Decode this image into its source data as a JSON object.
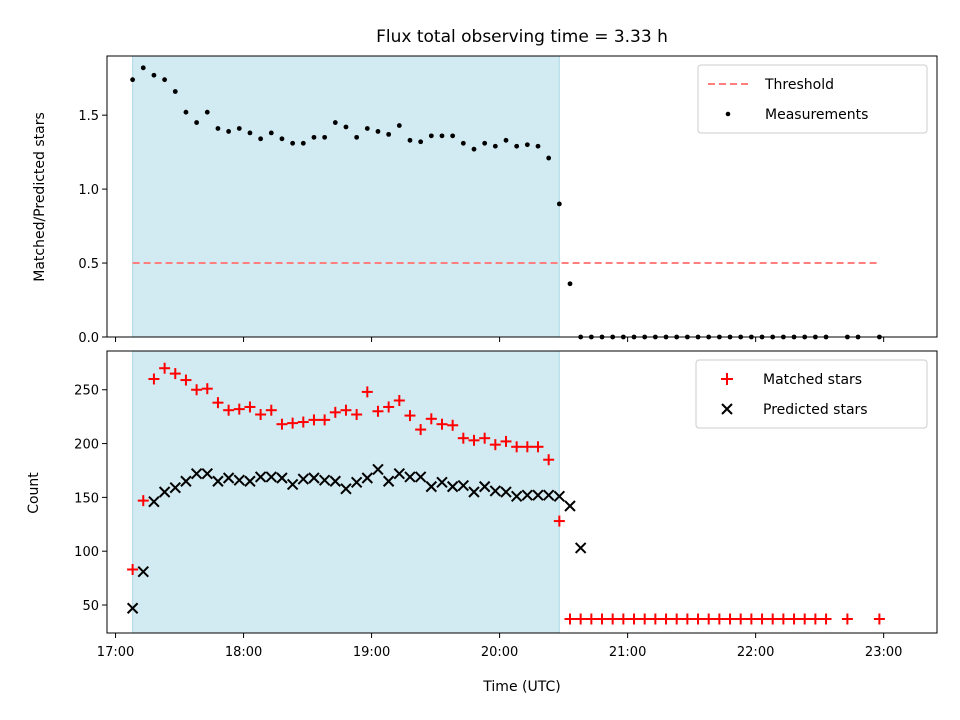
{
  "chart_data": [
    {
      "type": "scatter",
      "title": "Flux total observing time = 3.33 h",
      "xlabel": "",
      "ylabel": "Matched/Predicted stars",
      "ylim": [
        0,
        1.9
      ],
      "yticks": [
        0.0,
        0.5,
        1.0,
        1.5
      ],
      "ytick_labels": [
        "0.0",
        "0.5",
        "1.0",
        "1.5"
      ],
      "observing_window": {
        "start": "17:08",
        "end": "20:28",
        "color": "#add8e6"
      },
      "threshold": {
        "name": "Threshold",
        "value": 0.5,
        "x_start": "17:08",
        "x_end": "22:58",
        "color": "#ff7f7f"
      },
      "legend": {
        "position": "top-right",
        "entries": [
          "Threshold",
          "Measurements"
        ]
      },
      "series": [
        {
          "name": "Measurements",
          "color": "#000000",
          "marker": "dot",
          "points": [
            [
              "17:08",
              1.74
            ],
            [
              "17:13",
              1.82
            ],
            [
              "17:18",
              1.77
            ],
            [
              "17:23",
              1.74
            ],
            [
              "17:28",
              1.66
            ],
            [
              "17:33",
              1.52
            ],
            [
              "17:38",
              1.45
            ],
            [
              "17:43",
              1.52
            ],
            [
              "17:48",
              1.41
            ],
            [
              "17:53",
              1.39
            ],
            [
              "17:58",
              1.41
            ],
            [
              "18:03",
              1.38
            ],
            [
              "18:08",
              1.34
            ],
            [
              "18:13",
              1.38
            ],
            [
              "18:18",
              1.34
            ],
            [
              "18:23",
              1.31
            ],
            [
              "18:28",
              1.31
            ],
            [
              "18:33",
              1.35
            ],
            [
              "18:38",
              1.35
            ],
            [
              "18:43",
              1.45
            ],
            [
              "18:48",
              1.42
            ],
            [
              "18:53",
              1.35
            ],
            [
              "18:58",
              1.41
            ],
            [
              "19:03",
              1.39
            ],
            [
              "19:08",
              1.37
            ],
            [
              "19:13",
              1.43
            ],
            [
              "19:18",
              1.33
            ],
            [
              "19:23",
              1.32
            ],
            [
              "19:28",
              1.36
            ],
            [
              "19:33",
              1.36
            ],
            [
              "19:38",
              1.36
            ],
            [
              "19:43",
              1.31
            ],
            [
              "19:48",
              1.27
            ],
            [
              "19:53",
              1.31
            ],
            [
              "19:58",
              1.29
            ],
            [
              "20:03",
              1.33
            ],
            [
              "20:08",
              1.29
            ],
            [
              "20:13",
              1.3
            ],
            [
              "20:18",
              1.29
            ],
            [
              "20:23",
              1.21
            ],
            [
              "20:28",
              0.9
            ],
            [
              "20:33",
              0.36
            ],
            [
              "20:38",
              0.0
            ],
            [
              "20:43",
              0.0
            ],
            [
              "20:48",
              0.0
            ],
            [
              "20:53",
              0.0
            ],
            [
              "20:58",
              0.0
            ],
            [
              "21:03",
              0.0
            ],
            [
              "21:08",
              0.0
            ],
            [
              "21:13",
              0.0
            ],
            [
              "21:18",
              0.0
            ],
            [
              "21:23",
              0.0
            ],
            [
              "21:28",
              0.0
            ],
            [
              "21:33",
              0.0
            ],
            [
              "21:38",
              0.0
            ],
            [
              "21:43",
              0.0
            ],
            [
              "21:48",
              0.0
            ],
            [
              "21:53",
              0.0
            ],
            [
              "21:58",
              0.0
            ],
            [
              "22:03",
              0.0
            ],
            [
              "22:08",
              0.0
            ],
            [
              "22:13",
              0.0
            ],
            [
              "22:18",
              0.0
            ],
            [
              "22:23",
              0.0
            ],
            [
              "22:28",
              0.0
            ],
            [
              "22:33",
              0.0
            ],
            [
              "22:43",
              0.0
            ],
            [
              "22:48",
              0.0
            ],
            [
              "22:58",
              0.0
            ]
          ]
        }
      ]
    },
    {
      "type": "scatter",
      "title": "",
      "xlabel": "Time (UTC)",
      "ylabel": "Count",
      "xlim": [
        "16:56",
        "23:25"
      ],
      "ylim": [
        24,
        286
      ],
      "xticks": [
        "17:00",
        "18:00",
        "19:00",
        "20:00",
        "21:00",
        "22:00",
        "23:00"
      ],
      "xtick_labels": [
        "17:00",
        "18:00",
        "19:00",
        "20:00",
        "21:00",
        "22:00",
        "23:00"
      ],
      "yticks": [
        50,
        100,
        150,
        200,
        250
      ],
      "ytick_labels": [
        "50",
        "100",
        "150",
        "200",
        "250"
      ],
      "observing_window": {
        "start": "17:08",
        "end": "20:28",
        "color": "#add8e6"
      },
      "legend": {
        "position": "top-right",
        "entries": [
          "Matched stars",
          "Predicted stars"
        ]
      },
      "series": [
        {
          "name": "Matched stars",
          "color": "#ff0000",
          "marker": "plus",
          "points": [
            [
              "17:08",
              83
            ],
            [
              "17:13",
              147
            ],
            [
              "17:18",
              260
            ],
            [
              "17:23",
              270
            ],
            [
              "17:28",
              265
            ],
            [
              "17:33",
              259
            ],
            [
              "17:38",
              250
            ],
            [
              "17:43",
              251
            ],
            [
              "17:48",
              238
            ],
            [
              "17:53",
              231
            ],
            [
              "17:58",
              232
            ],
            [
              "18:03",
              234
            ],
            [
              "18:08",
              227
            ],
            [
              "18:13",
              231
            ],
            [
              "18:18",
              218
            ],
            [
              "18:23",
              219
            ],
            [
              "18:28",
              220
            ],
            [
              "18:33",
              222
            ],
            [
              "18:38",
              222
            ],
            [
              "18:43",
              229
            ],
            [
              "18:48",
              231
            ],
            [
              "18:53",
              227
            ],
            [
              "18:58",
              248
            ],
            [
              "19:03",
              230
            ],
            [
              "19:08",
              234
            ],
            [
              "19:13",
              240
            ],
            [
              "19:18",
              226
            ],
            [
              "19:23",
              213
            ],
            [
              "19:28",
              223
            ],
            [
              "19:33",
              218
            ],
            [
              "19:38",
              217
            ],
            [
              "19:43",
              205
            ],
            [
              "19:48",
              203
            ],
            [
              "19:53",
              205
            ],
            [
              "19:58",
              199
            ],
            [
              "20:03",
              202
            ],
            [
              "20:08",
              197
            ],
            [
              "20:13",
              197
            ],
            [
              "20:18",
              197
            ],
            [
              "20:23",
              185
            ],
            [
              "20:28",
              128
            ],
            [
              "20:33",
              37
            ],
            [
              "20:38",
              37
            ],
            [
              "20:43",
              37
            ],
            [
              "20:48",
              37
            ],
            [
              "20:53",
              37
            ],
            [
              "20:58",
              37
            ],
            [
              "21:03",
              37
            ],
            [
              "21:08",
              37
            ],
            [
              "21:13",
              37
            ],
            [
              "21:18",
              37
            ],
            [
              "21:23",
              37
            ],
            [
              "21:28",
              37
            ],
            [
              "21:33",
              37
            ],
            [
              "21:38",
              37
            ],
            [
              "21:43",
              37
            ],
            [
              "21:48",
              37
            ],
            [
              "21:53",
              37
            ],
            [
              "21:58",
              37
            ],
            [
              "22:03",
              37
            ],
            [
              "22:08",
              37
            ],
            [
              "22:13",
              37
            ],
            [
              "22:18",
              37
            ],
            [
              "22:23",
              37
            ],
            [
              "22:28",
              37
            ],
            [
              "22:33",
              37
            ],
            [
              "22:43",
              37
            ],
            [
              "22:58",
              37
            ]
          ]
        },
        {
          "name": "Predicted stars",
          "color": "#000000",
          "marker": "cross",
          "points": [
            [
              "17:08",
              47
            ],
            [
              "17:13",
              81
            ],
            [
              "17:18",
              146
            ],
            [
              "17:23",
              155
            ],
            [
              "17:28",
              159
            ],
            [
              "17:33",
              165
            ],
            [
              "17:38",
              172
            ],
            [
              "17:43",
              172
            ],
            [
              "17:48",
              165
            ],
            [
              "17:53",
              168
            ],
            [
              "17:58",
              166
            ],
            [
              "18:03",
              165
            ],
            [
              "18:08",
              169
            ],
            [
              "18:13",
              169
            ],
            [
              "18:18",
              168
            ],
            [
              "18:23",
              162
            ],
            [
              "18:28",
              167
            ],
            [
              "18:33",
              168
            ],
            [
              "18:38",
              166
            ],
            [
              "18:43",
              165
            ],
            [
              "18:48",
              158
            ],
            [
              "18:53",
              164
            ],
            [
              "18:58",
              168
            ],
            [
              "19:03",
              176
            ],
            [
              "19:08",
              165
            ],
            [
              "19:13",
              172
            ],
            [
              "19:18",
              169
            ],
            [
              "19:23",
              169
            ],
            [
              "19:28",
              160
            ],
            [
              "19:33",
              164
            ],
            [
              "19:38",
              160
            ],
            [
              "19:43",
              161
            ],
            [
              "19:48",
              155
            ],
            [
              "19:53",
              160
            ],
            [
              "19:58",
              156
            ],
            [
              "20:03",
              155
            ],
            [
              "20:08",
              151
            ],
            [
              "20:13",
              152
            ],
            [
              "20:18",
              152
            ],
            [
              "20:23",
              152
            ],
            [
              "20:28",
              151
            ],
            [
              "20:33",
              142
            ],
            [
              "20:38",
              103
            ]
          ]
        }
      ]
    }
  ]
}
